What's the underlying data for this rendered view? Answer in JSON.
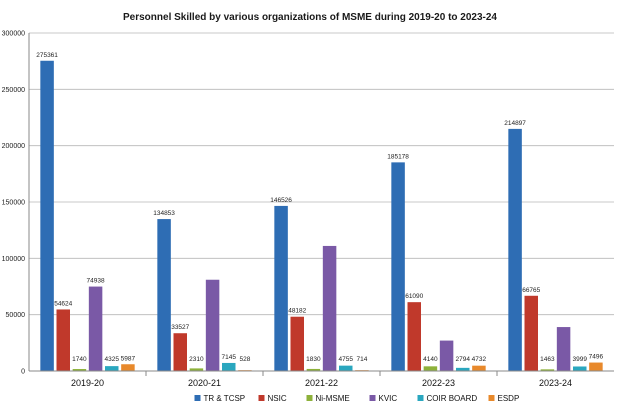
{
  "chart_data": {
    "type": "bar",
    "title": "Personnel Skilled by various organizations of MSME during  2019-20  to 2023-24",
    "xlabel": "",
    "ylabel": "",
    "ylim": [
      0,
      300000
    ],
    "yticks": [
      0,
      50000,
      100000,
      150000,
      200000,
      250000,
      300000
    ],
    "grid": true,
    "legend_position": "bottom",
    "categories": [
      "2019-20",
      "2020-21",
      "2021-22",
      "2022-23",
      "2023-24"
    ],
    "series": [
      {
        "name": "TR & TCSP",
        "color": "#2e6db4",
        "values": [
          275361,
          134853,
          146526,
          185178,
          214897
        ],
        "labels": [
          "275361",
          "134853",
          "146526",
          "185178",
          "214897"
        ]
      },
      {
        "name": "NSIC",
        "color": "#c0392b",
        "values": [
          54624,
          33527,
          48182,
          61090,
          66765
        ],
        "labels": [
          "54624",
          "33527",
          "48182",
          "61090",
          "66765"
        ]
      },
      {
        "name": "Ni-MSME",
        "color": "#8db13a",
        "values": [
          1740,
          2310,
          1830,
          4140,
          1463
        ],
        "labels": [
          "1740",
          "2310",
          "1830",
          "4140",
          "1463"
        ]
      },
      {
        "name": "KVIC",
        "color": "#7a59a6",
        "values": [
          74938,
          81000,
          111000,
          27000,
          39000
        ],
        "labels": [
          "74938",
          "",
          "",
          "",
          ""
        ]
      },
      {
        "name": "COIR BOARD",
        "color": "#2aa7bf",
        "values": [
          4325,
          7145,
          4755,
          2794,
          3999
        ],
        "labels": [
          "4325",
          "7145",
          "4755",
          "2794",
          "3999"
        ]
      },
      {
        "name": "ESDP",
        "color": "#e8892b",
        "values": [
          5987,
          528,
          714,
          4732,
          7496
        ],
        "labels": [
          "5987",
          "528",
          "714",
          "4732",
          "7496"
        ]
      }
    ]
  }
}
